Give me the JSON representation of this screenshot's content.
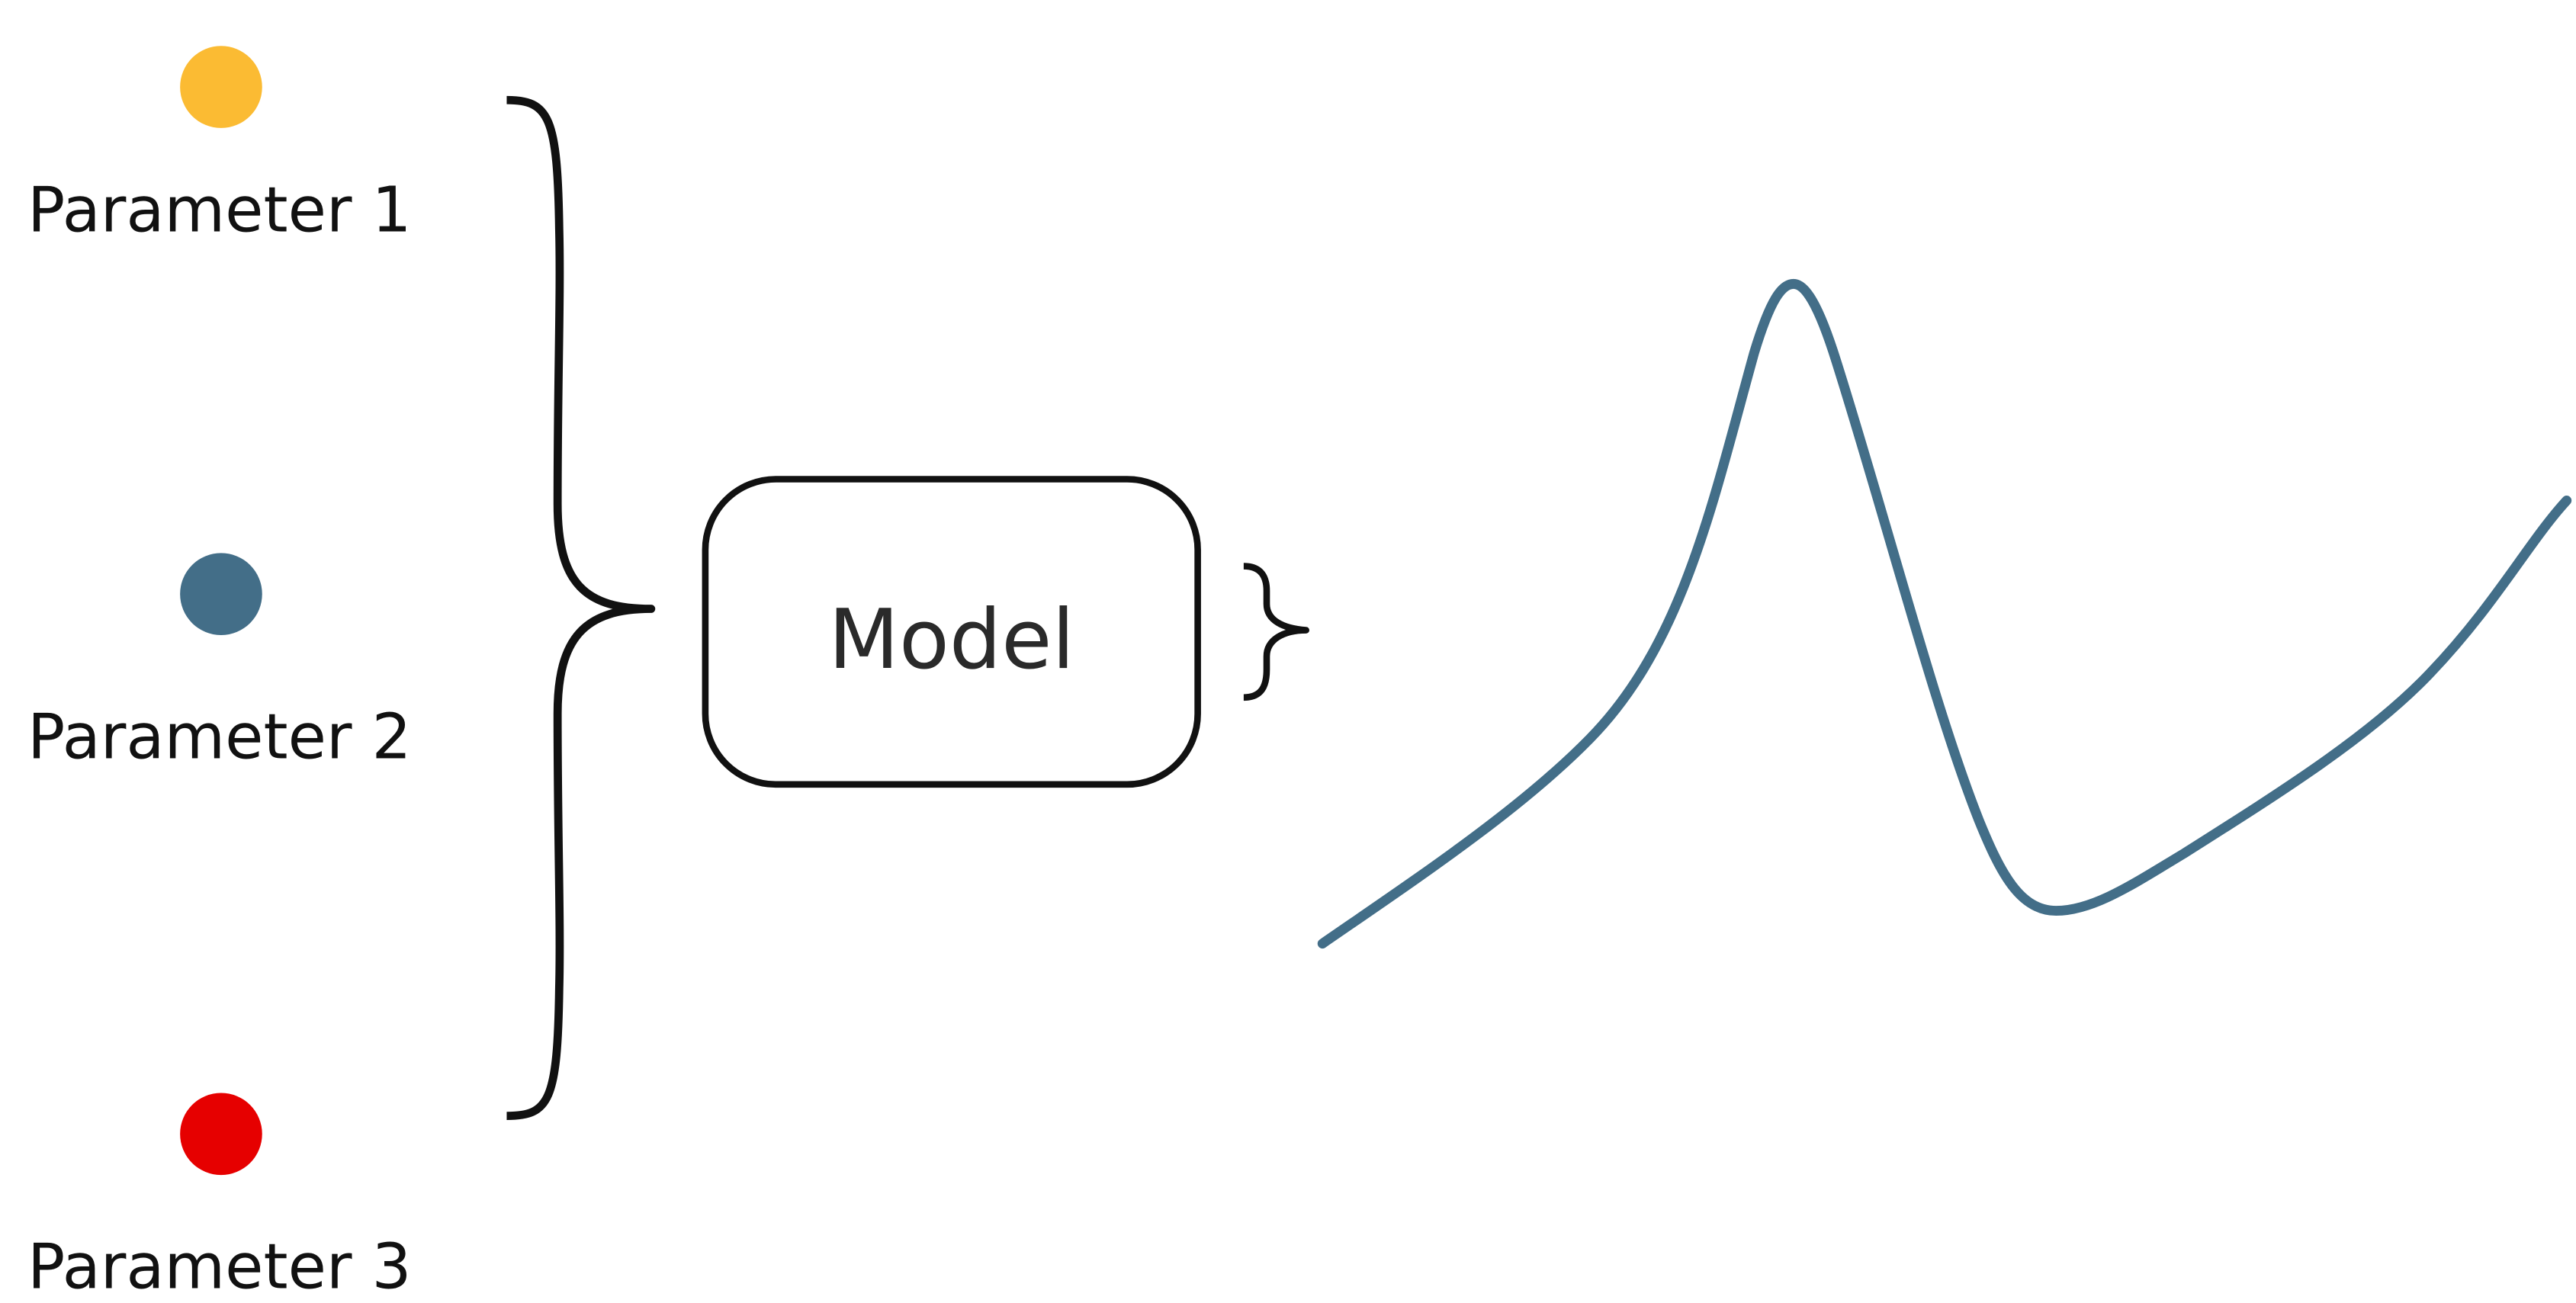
{
  "parameters": [
    {
      "label": "Parameter 1",
      "color": "#FBBB33"
    },
    {
      "label": "Parameter 2",
      "color": "#436E88"
    },
    {
      "label": "Parameter 3",
      "color": "#E60000"
    }
  ],
  "model": {
    "label": "Model"
  },
  "output_curve": {
    "color": "#436E88"
  }
}
